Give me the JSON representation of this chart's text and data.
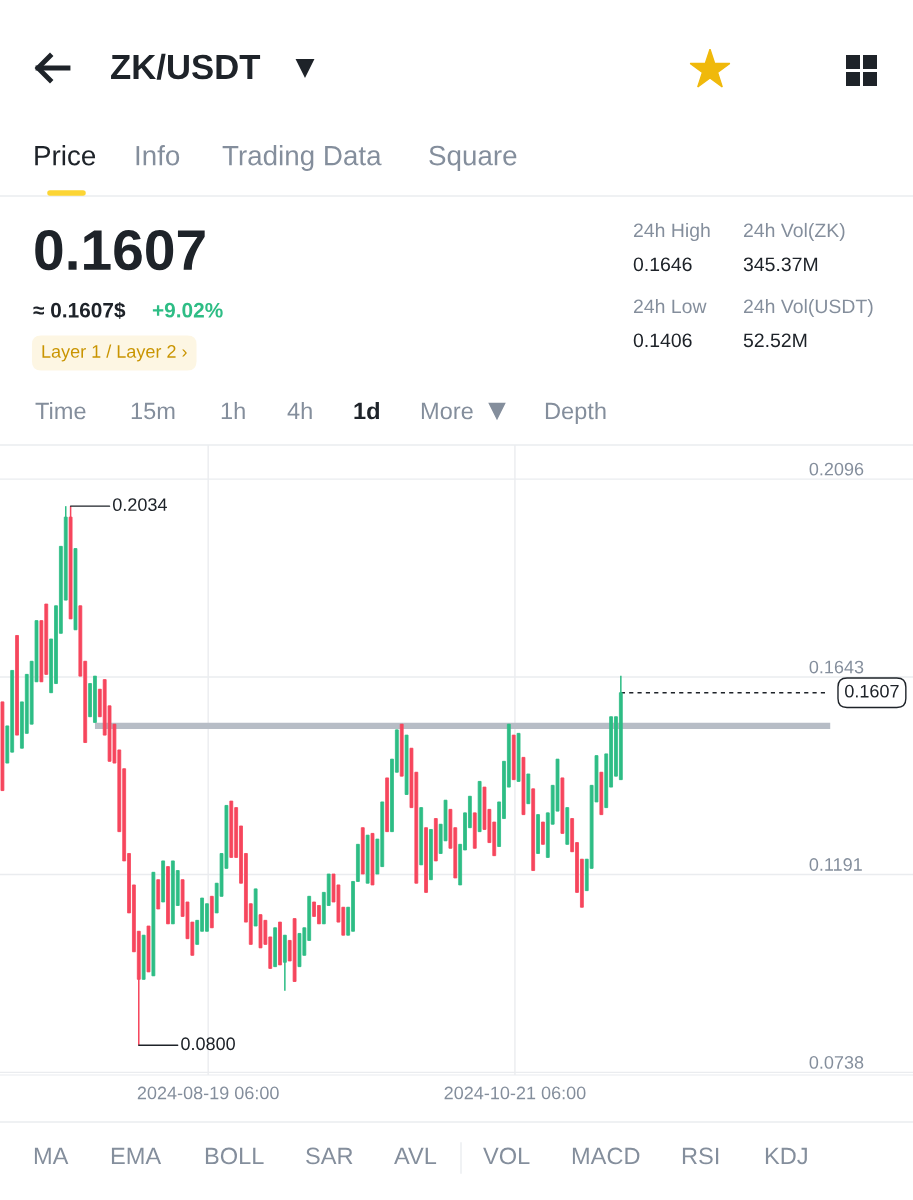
{
  "chart_data": {
    "type": "candlestick",
    "title": "ZK/USDT",
    "x": [
      "2024-07-08",
      "2024-07-09",
      "2024-07-10",
      "2024-07-11",
      "2024-07-12",
      "2024-07-13",
      "2024-07-14",
      "2024-07-15",
      "2024-07-16",
      "2024-07-17",
      "2024-07-18",
      "2024-07-19",
      "2024-07-20",
      "2024-07-21",
      "2024-07-22",
      "2024-07-23",
      "2024-07-24",
      "2024-07-25",
      "2024-07-26",
      "2024-07-27",
      "2024-07-28",
      "2024-07-29",
      "2024-07-30",
      "2024-07-31",
      "2024-08-01",
      "2024-08-02",
      "2024-08-03",
      "2024-08-04",
      "2024-08-05",
      "2024-08-06",
      "2024-08-07",
      "2024-08-08",
      "2024-08-09",
      "2024-08-10",
      "2024-08-11",
      "2024-08-12",
      "2024-08-13",
      "2024-08-14",
      "2024-08-15",
      "2024-08-16",
      "2024-08-17",
      "2024-08-18",
      "2024-08-19",
      "2024-08-20",
      "2024-08-21",
      "2024-08-22",
      "2024-08-23",
      "2024-08-24",
      "2024-08-25",
      "2024-08-26",
      "2024-08-27",
      "2024-08-28",
      "2024-08-29",
      "2024-08-30",
      "2024-08-31",
      "2024-09-01",
      "2024-09-02",
      "2024-09-03",
      "2024-09-04",
      "2024-09-05",
      "2024-09-06",
      "2024-09-07",
      "2024-09-08",
      "2024-09-09",
      "2024-09-10",
      "2024-09-11",
      "2024-09-12",
      "2024-09-13",
      "2024-09-14",
      "2024-09-15",
      "2024-09-16",
      "2024-09-17",
      "2024-09-18",
      "2024-09-19",
      "2024-09-20",
      "2024-09-21",
      "2024-09-22",
      "2024-09-23",
      "2024-09-24",
      "2024-09-25",
      "2024-09-26",
      "2024-09-27",
      "2024-09-28",
      "2024-09-29",
      "2024-09-30",
      "2024-10-01",
      "2024-10-02",
      "2024-10-03",
      "2024-10-04",
      "2024-10-05",
      "2024-10-06",
      "2024-10-07",
      "2024-10-08",
      "2024-10-09",
      "2024-10-10",
      "2024-10-11",
      "2024-10-12",
      "2024-10-13",
      "2024-10-14",
      "2024-10-15",
      "2024-10-16",
      "2024-10-17",
      "2024-10-18",
      "2024-10-19",
      "2024-10-20",
      "2024-10-21",
      "2024-10-22",
      "2024-10-23",
      "2024-10-24",
      "2024-10-25",
      "2024-10-26",
      "2024-10-27",
      "2024-10-28",
      "2024-10-29",
      "2024-10-30",
      "2024-10-31",
      "2024-11-01",
      "2024-11-02",
      "2024-11-03",
      "2024-11-04",
      "2024-11-05",
      "2024-11-06",
      "2024-11-07",
      "2024-11-08",
      "2024-11-09",
      "2024-11-10",
      "2024-11-11",
      "2024-11-12"
    ],
    "ohlc": [
      [
        0.1586,
        0.1586,
        0.1383,
        0.1383
      ],
      [
        0.1446,
        0.1531,
        0.1446,
        0.1531
      ],
      [
        0.1471,
        0.1658,
        0.1471,
        0.1658
      ],
      [
        0.1738,
        0.1738,
        0.151,
        0.151
      ],
      [
        0.148,
        0.1586,
        0.148,
        0.1586
      ],
      [
        0.1514,
        0.1649,
        0.1514,
        0.1649
      ],
      [
        0.1535,
        0.1679,
        0.1535,
        0.1679
      ],
      [
        0.1632,
        0.1772,
        0.1632,
        0.1772
      ],
      [
        0.1772,
        0.1772,
        0.1632,
        0.1632
      ],
      [
        0.181,
        0.181,
        0.1649,
        0.1649
      ],
      [
        0.1607,
        0.173,
        0.1607,
        0.173
      ],
      [
        0.1628,
        0.1806,
        0.1628,
        0.1806
      ],
      [
        0.1743,
        0.1942,
        0.1743,
        0.1942
      ],
      [
        0.1819,
        0.2034,
        0.1819,
        0.2009
      ],
      [
        0.2009,
        0.2034,
        0.1776,
        0.1776
      ],
      [
        0.1751,
        0.1937,
        0.1751,
        0.1937
      ],
      [
        0.1806,
        0.1806,
        0.1645,
        0.1645
      ],
      [
        0.1679,
        0.1679,
        0.1493,
        0.1493
      ],
      [
        0.1552,
        0.1628,
        0.1552,
        0.1628
      ],
      [
        0.1539,
        0.1645,
        0.1539,
        0.1645
      ],
      [
        0.1615,
        0.1615,
        0.1552,
        0.1552
      ],
      [
        0.1637,
        0.1637,
        0.151,
        0.151
      ],
      [
        0.1577,
        0.1577,
        0.145,
        0.145
      ],
      [
        0.1535,
        0.1535,
        0.1446,
        0.1446
      ],
      [
        0.1476,
        0.1476,
        0.1289,
        0.1289
      ],
      [
        0.1433,
        0.1433,
        0.1222,
        0.1222
      ],
      [
        0.1239,
        0.1239,
        0.1103,
        0.1103
      ],
      [
        0.1167,
        0.1167,
        0.1014,
        0.1014
      ],
      [
        0.1061,
        0.1061,
        0.08,
        0.0951
      ],
      [
        0.0951,
        0.1052,
        0.0951,
        0.1052
      ],
      [
        0.1073,
        0.1073,
        0.0968,
        0.0968
      ],
      [
        0.0959,
        0.1196,
        0.0959,
        0.1196
      ],
      [
        0.1179,
        0.1179,
        0.1112,
        0.1112
      ],
      [
        0.1128,
        0.1222,
        0.1128,
        0.1222
      ],
      [
        0.1209,
        0.1209,
        0.1078,
        0.1078
      ],
      [
        0.1078,
        0.1222,
        0.1078,
        0.1222
      ],
      [
        0.112,
        0.12,
        0.112,
        0.12
      ],
      [
        0.1179,
        0.1179,
        0.1095,
        0.1095
      ],
      [
        0.1128,
        0.1128,
        0.1044,
        0.1044
      ],
      [
        0.1082,
        0.1082,
        0.1006,
        0.1006
      ],
      [
        0.1031,
        0.1086,
        0.1031,
        0.1086
      ],
      [
        0.1061,
        0.1137,
        0.1061,
        0.1137
      ],
      [
        0.1061,
        0.1124,
        0.1061,
        0.1124
      ],
      [
        0.1141,
        0.1141,
        0.1069,
        0.1069
      ],
      [
        0.1103,
        0.1171,
        0.1103,
        0.1171
      ],
      [
        0.1141,
        0.1239,
        0.1141,
        0.1239
      ],
      [
        0.1205,
        0.1349,
        0.1205,
        0.1349
      ],
      [
        0.1359,
        0.1359,
        0.123,
        0.123
      ],
      [
        0.1344,
        0.1344,
        0.123,
        0.123
      ],
      [
        0.1302,
        0.1302,
        0.1171,
        0.1171
      ],
      [
        0.1239,
        0.1239,
        0.1082,
        0.1082
      ],
      [
        0.1124,
        0.1124,
        0.1031,
        0.1031
      ],
      [
        0.1073,
        0.1158,
        0.1073,
        0.1158
      ],
      [
        0.1099,
        0.1099,
        0.1023,
        0.1023
      ],
      [
        0.1086,
        0.1086,
        0.1031,
        0.1031
      ],
      [
        0.1048,
        0.1048,
        0.0976,
        0.0976
      ],
      [
        0.098,
        0.1069,
        0.098,
        0.1069
      ],
      [
        0.1082,
        0.1082,
        0.0984,
        0.0984
      ],
      [
        0.099,
        0.1052,
        0.0925,
        0.1052
      ],
      [
        0.104,
        0.104,
        0.0993,
        0.0993
      ],
      [
        0.109,
        0.109,
        0.0946,
        0.0946
      ],
      [
        0.098,
        0.1056,
        0.098,
        0.1056
      ],
      [
        0.1006,
        0.1069,
        0.1006,
        0.1069
      ],
      [
        0.104,
        0.1141,
        0.104,
        0.1141
      ],
      [
        0.1128,
        0.1128,
        0.1095,
        0.1095
      ],
      [
        0.112,
        0.112,
        0.1078,
        0.1078
      ],
      [
        0.1078,
        0.115,
        0.1078,
        0.115
      ],
      [
        0.112,
        0.1192,
        0.112,
        0.1192
      ],
      [
        0.1192,
        0.1192,
        0.1128,
        0.1128
      ],
      [
        0.1167,
        0.1167,
        0.1082,
        0.1082
      ],
      [
        0.1116,
        0.1116,
        0.1052,
        0.1052
      ],
      [
        0.1052,
        0.1116,
        0.1052,
        0.1116
      ],
      [
        0.1061,
        0.1175,
        0.1061,
        0.1175
      ],
      [
        0.1175,
        0.126,
        0.1175,
        0.126
      ],
      [
        0.1298,
        0.1298,
        0.1192,
        0.1192
      ],
      [
        0.1171,
        0.1281,
        0.1171,
        0.1281
      ],
      [
        0.1285,
        0.1285,
        0.1167,
        0.1167
      ],
      [
        0.1192,
        0.1272,
        0.1192,
        0.1272
      ],
      [
        0.1209,
        0.1357,
        0.1209,
        0.1357
      ],
      [
        0.1412,
        0.1412,
        0.1289,
        0.1289
      ],
      [
        0.1289,
        0.1455,
        0.1289,
        0.1455
      ],
      [
        0.1425,
        0.1522,
        0.1425,
        0.1522
      ],
      [
        0.1535,
        0.1535,
        0.1416,
        0.1416
      ],
      [
        0.1374,
        0.151,
        0.1374,
        0.151
      ],
      [
        0.148,
        0.148,
        0.1344,
        0.1344
      ],
      [
        0.1425,
        0.1425,
        0.1171,
        0.1171
      ],
      [
        0.1213,
        0.1344,
        0.1213,
        0.1344
      ],
      [
        0.1298,
        0.1298,
        0.115,
        0.115
      ],
      [
        0.1179,
        0.1294,
        0.1179,
        0.1294
      ],
      [
        0.1319,
        0.1319,
        0.1222,
        0.1222
      ],
      [
        0.1239,
        0.1306,
        0.1239,
        0.1306
      ],
      [
        0.1268,
        0.1361,
        0.1268,
        0.1361
      ],
      [
        0.134,
        0.134,
        0.1251,
        0.1251
      ],
      [
        0.1298,
        0.1298,
        0.1183,
        0.1183
      ],
      [
        0.1167,
        0.126,
        0.1167,
        0.126
      ],
      [
        0.1247,
        0.1332,
        0.1247,
        0.1332
      ],
      [
        0.1298,
        0.137,
        0.1298,
        0.137
      ],
      [
        0.1332,
        0.1332,
        0.1251,
        0.1251
      ],
      [
        0.1289,
        0.1404,
        0.1289,
        0.1404
      ],
      [
        0.1391,
        0.1391,
        0.1294,
        0.1294
      ],
      [
        0.134,
        0.134,
        0.1264,
        0.1264
      ],
      [
        0.1311,
        0.1311,
        0.1234,
        0.1234
      ],
      [
        0.1255,
        0.1357,
        0.1255,
        0.1357
      ],
      [
        0.1319,
        0.145,
        0.1319,
        0.145
      ],
      [
        0.1391,
        0.1535,
        0.1391,
        0.1535
      ],
      [
        0.151,
        0.151,
        0.1408,
        0.1408
      ],
      [
        0.1404,
        0.1514,
        0.1404,
        0.1514
      ],
      [
        0.1459,
        0.1459,
        0.1328,
        0.1328
      ],
      [
        0.1353,
        0.1421,
        0.1353,
        0.1421
      ],
      [
        0.1387,
        0.1387,
        0.12,
        0.12
      ],
      [
        0.1239,
        0.1328,
        0.1239,
        0.1328
      ],
      [
        0.1311,
        0.1311,
        0.126,
        0.126
      ],
      [
        0.123,
        0.1332,
        0.123,
        0.1332
      ],
      [
        0.1306,
        0.1395,
        0.1306,
        0.1395
      ],
      [
        0.1336,
        0.1455,
        0.1336,
        0.1455
      ],
      [
        0.1412,
        0.1412,
        0.1285,
        0.1285
      ],
      [
        0.126,
        0.1344,
        0.126,
        0.1344
      ],
      [
        0.1319,
        0.1319,
        0.1243,
        0.1243
      ],
      [
        0.1264,
        0.1264,
        0.115,
        0.115
      ],
      [
        0.1226,
        0.1226,
        0.1116,
        0.1116
      ],
      [
        0.1154,
        0.1226,
        0.1154,
        0.1226
      ],
      [
        0.1205,
        0.1395,
        0.1205,
        0.1395
      ],
      [
        0.1357,
        0.1463,
        0.1357,
        0.1463
      ],
      [
        0.1425,
        0.1425,
        0.1328,
        0.1328
      ],
      [
        0.1344,
        0.1467,
        0.1344,
        0.1467
      ],
      [
        0.1391,
        0.1552,
        0.1391,
        0.1552
      ],
      [
        0.1416,
        0.1552,
        0.1416,
        0.1552
      ],
      [
        0.1408,
        0.1646,
        0.1408,
        0.1607
      ]
    ],
    "series": [
      {
        "type": "line",
        "x": [
          "2024-07-27",
          "2024-12-25"
        ],
        "values": [
          0.1531,
          0.1531
        ],
        "color": "#b7bdc6"
      }
    ],
    "ref_lines": [
      {
        "axis": "y",
        "value": 0.1607,
        "label": "0.1607",
        "color": "#1e2329",
        "line_style": "dashed"
      }
    ],
    "annotations": [
      {
        "text": "0.2034",
        "x": "2024-07-22",
        "y": 0.2034
      },
      {
        "text": "0.0800",
        "x": "2024-08-05",
        "y": 0.08
      },
      "Price",
      "Info",
      "Trading Data",
      "Square",
      "0.1607",
      "≈ 0.1607$",
      "+9.02%",
      "Layer 1 / Layer 2 ›",
      "24h High",
      "0.1646",
      "24h Vol(ZK)",
      "345.37M",
      "24h Low",
      "0.1406",
      "24h Vol(USDT)",
      "52.52M",
      "Time",
      "15m",
      "1h",
      "4h",
      "1d",
      "More",
      "Depth",
      "MA",
      "EMA",
      "BOLL",
      "SAR",
      "AVL",
      "VOL",
      "MACD",
      "RSI",
      "KDJ"
    ],
    "xlim": [
      "2024-07-07T12:00",
      "2025-01-11"
    ],
    "xticks": [
      {
        "value": "2024-08-19T06:00",
        "label": "2024-08-19 06:00"
      },
      {
        "value": "2024-10-21T06:00",
        "label": "2024-10-21 06:00"
      }
    ],
    "ylim": [
      0.0732,
      0.2174
    ],
    "yticks": [
      0.0738,
      0.1191,
      0.1643,
      0.2096
    ],
    "grid": true
  }
}
